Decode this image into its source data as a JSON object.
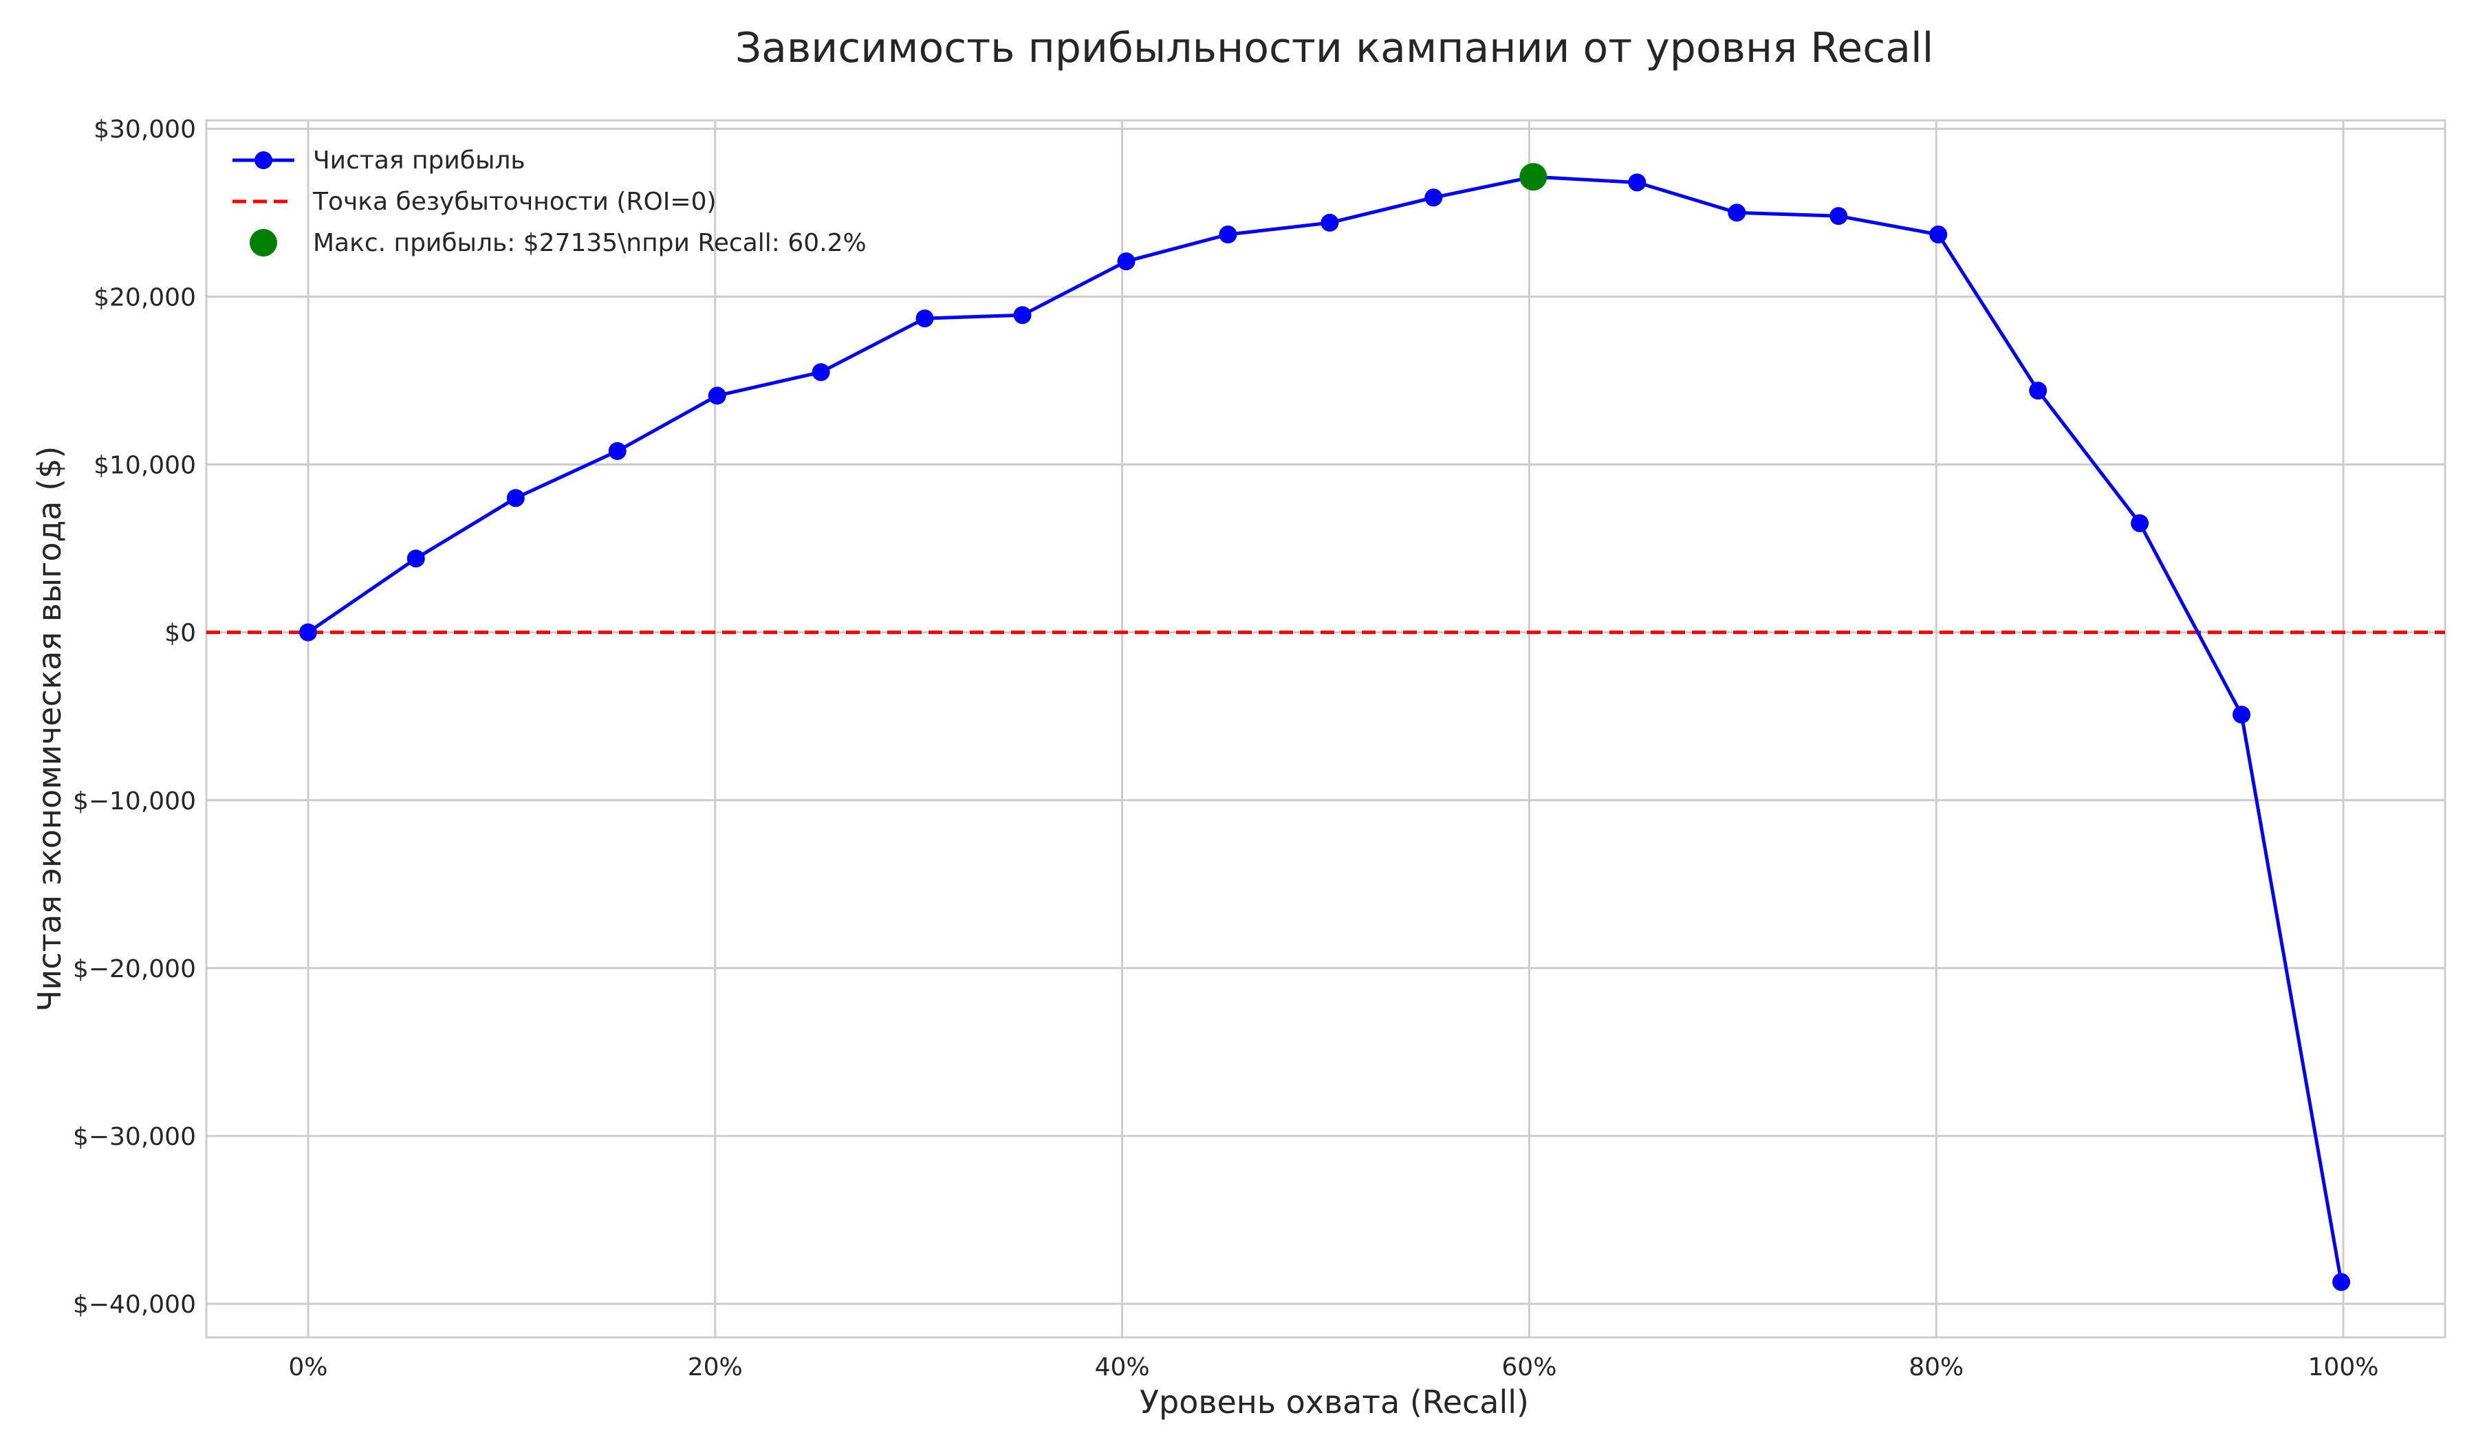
{
  "chart_data": {
    "type": "line",
    "title": "Зависимость прибыльности кампании от уровня Recall",
    "xlabel": "Уровень охвата (Recall)",
    "ylabel": "Чистая экономическая выгода ($)",
    "xlim": [
      -0.05,
      1.05
    ],
    "ylim": [
      -42000,
      30500
    ],
    "x_ticks": [
      0,
      0.2,
      0.4,
      0.6,
      0.8,
      1.0
    ],
    "x_tick_labels": [
      "0%",
      "20%",
      "40%",
      "60%",
      "80%",
      "100%"
    ],
    "y_ticks": [
      30000,
      20000,
      10000,
      0,
      -10000,
      -20000,
      -30000,
      -40000
    ],
    "y_tick_labels": [
      "$30,000",
      "$20,000",
      "$10,000",
      "$0",
      "$−10,000",
      "$−20,000",
      "$−30,000",
      "$−40,000"
    ],
    "grid": true,
    "legend_position": "top-left",
    "series": [
      {
        "name": "Чистая прибыль",
        "color": "#0000ff",
        "marker": "circle",
        "x": [
          0.0,
          0.053,
          0.102,
          0.152,
          0.201,
          0.252,
          0.303,
          0.351,
          0.402,
          0.452,
          0.502,
          0.553,
          0.602,
          0.653,
          0.702,
          0.752,
          0.801,
          0.85,
          0.9,
          0.95,
          0.999
        ],
        "y": [
          0,
          4400,
          8000,
          10800,
          14100,
          15500,
          18700,
          18900,
          22100,
          23700,
          24400,
          25900,
          27135,
          26800,
          25000,
          24800,
          23700,
          14400,
          6500,
          -4900,
          -38700
        ]
      }
    ],
    "reference_lines": [
      {
        "name": "Точка безубыточности (ROI=0)",
        "y": 0,
        "color": "#ff0000",
        "style": "dashed"
      }
    ],
    "highlight_point": {
      "name": "Макс. прибыль: $27135\\nпри Recall: 60.2%",
      "x": 0.602,
      "y": 27135,
      "color": "#008000"
    }
  }
}
